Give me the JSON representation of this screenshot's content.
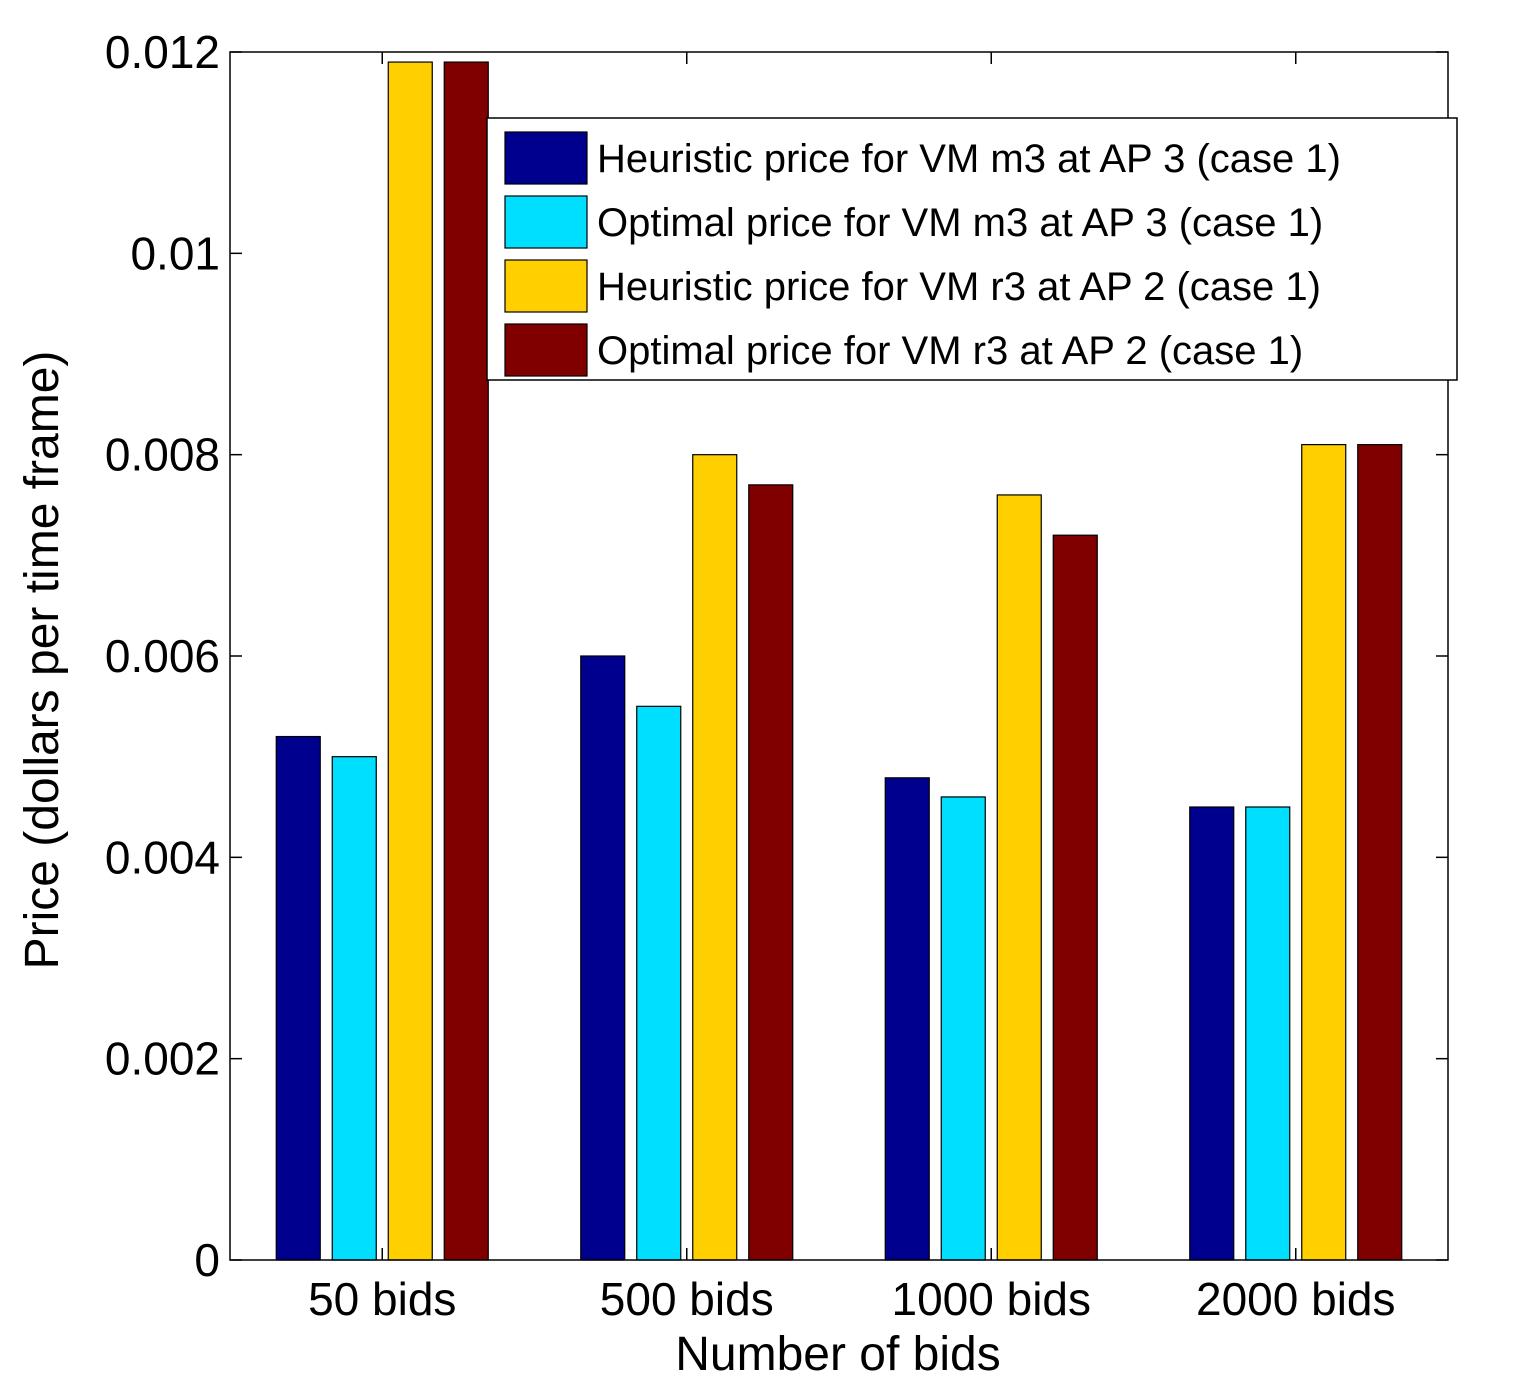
{
  "chart_data": {
    "type": "bar",
    "title": "",
    "xlabel": "Number of bids",
    "ylabel": "Price (dollars per time frame)",
    "ylim": [
      0,
      0.012
    ],
    "yticks": [
      "0",
      "0.002",
      "0.004",
      "0.006",
      "0.008",
      "0.01",
      "0.012"
    ],
    "ytick_values": [
      0,
      0.002,
      0.004,
      0.006,
      0.008,
      0.01,
      0.012
    ],
    "categories": [
      "50 bids",
      "500 bids",
      "1000 bids",
      "2000 bids"
    ],
    "legend_position": "top-right",
    "grid": false,
    "series": [
      {
        "name": "Heuristic price for VM m3 at AP 3 (case 1)",
        "color": "#00008F",
        "values": [
          0.0052,
          0.006,
          0.00479,
          0.0045
        ]
      },
      {
        "name": "Optimal price for VM m3 at AP 3 (case 1)",
        "color": "#00DFFF",
        "values": [
          0.005,
          0.0055,
          0.0046,
          0.0045
        ]
      },
      {
        "name": "Heuristic price for VM r3 at AP 2 (case 1)",
        "color": "#FFCF00",
        "values": [
          0.0119,
          0.008,
          0.0076,
          0.0081
        ]
      },
      {
        "name": "Optimal price for VM r3 at AP 2 (case 1)",
        "color": "#800000",
        "values": [
          0.0119,
          0.0077,
          0.0072,
          0.0081
        ]
      }
    ]
  }
}
